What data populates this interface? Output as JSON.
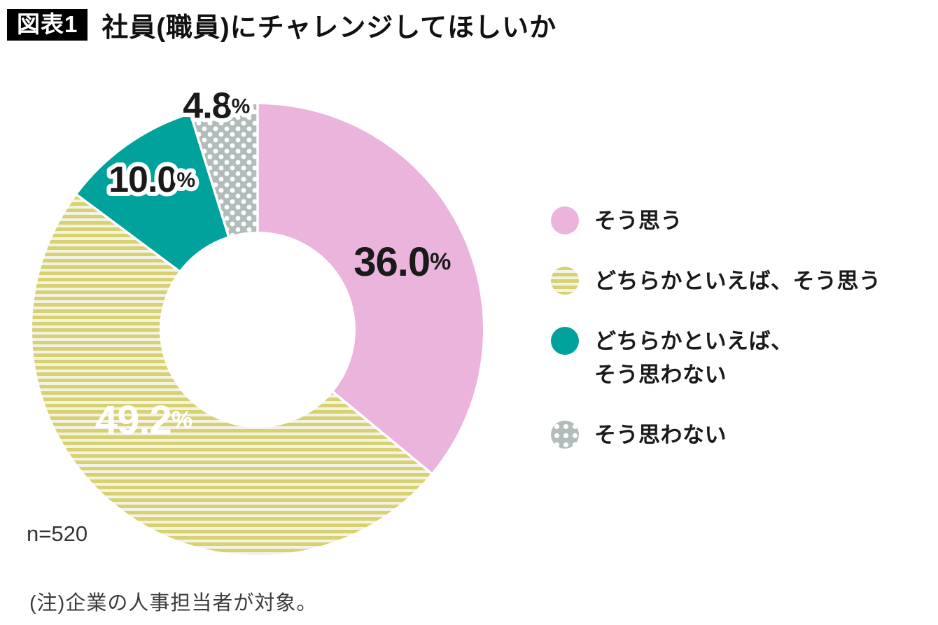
{
  "header": {
    "badge": "図表1",
    "title": "社員(職員)にチャレンジしてほしいか"
  },
  "chart_data": {
    "type": "pie",
    "subtype": "donut",
    "title": "社員(職員)にチャレンジしてほしいか",
    "sample_label": "n=520",
    "note": "(注)企業の人事担当者が対象。",
    "unit": "%",
    "start_angle_deg": 0,
    "direction": "clockwise",
    "legend_position": "right",
    "categories": [
      "そう思う",
      "どちらかといえば、そう思う",
      "どちらかといえば、そう思わない",
      "そう思わない"
    ],
    "values": [
      36.0,
      49.2,
      10.0,
      4.8
    ],
    "series": [
      {
        "label": "そう思う",
        "value": 36.0,
        "display_value": "36.0",
        "percent_sign": "%",
        "color": "#eab4dd",
        "pattern": "solid",
        "value_label_color": "#1a1a1a"
      },
      {
        "label": "どちらかといえば、そう思う",
        "value": 49.2,
        "display_value": "49.2",
        "percent_sign": "%",
        "color": "#d8d170",
        "pattern": "stripes",
        "pattern_alt_color": "#f3f2e7",
        "value_label_color": "#ffffff"
      },
      {
        "label": "どちらかといえば、\nそう思わない",
        "value": 10.0,
        "display_value": "10.0",
        "percent_sign": "%",
        "color": "#00a29b",
        "pattern": "solid",
        "value_label_color": "#1a1a1a"
      },
      {
        "label": "そう思わない",
        "value": 4.8,
        "display_value": "4.8",
        "percent_sign": "%",
        "color": "#b2bcba",
        "pattern": "dots",
        "pattern_alt_color": "#ffffff",
        "value_label_color": "#1a1a1a"
      }
    ]
  }
}
